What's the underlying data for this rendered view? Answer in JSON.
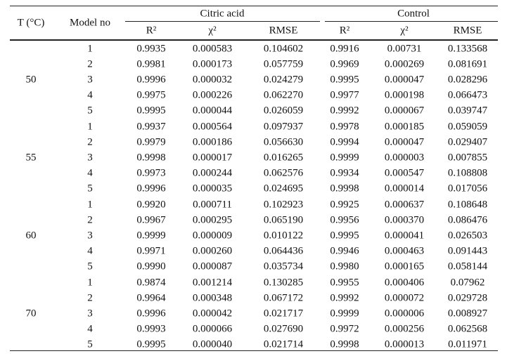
{
  "table": {
    "header": {
      "temperature": "T (°C)",
      "model": "Model no",
      "groups": [
        {
          "title": "Citric acid",
          "columns": [
            "R²",
            "χ²",
            "RMSE"
          ]
        },
        {
          "title": "Control",
          "columns": [
            "R²",
            "χ²",
            "RMSE"
          ]
        }
      ]
    },
    "blocks": [
      {
        "temperature": "50",
        "rows": [
          [
            "1",
            "0.9935",
            "0.000583",
            "0.104602",
            "0.9916",
            "0.00731",
            "0.133568"
          ],
          [
            "2",
            "0.9981",
            "0.000173",
            "0.057759",
            "0.9969",
            "0.000269",
            "0.081691"
          ],
          [
            "3",
            "0.9996",
            "0.000032",
            "0.024279",
            "0.9995",
            "0.000047",
            "0.028296"
          ],
          [
            "4",
            "0.9975",
            "0.000226",
            "0.062270",
            "0.9977",
            "0.000198",
            "0.066473"
          ],
          [
            "5",
            "0.9995",
            "0.000044",
            "0.026059",
            "0.9992",
            "0.000067",
            "0.039747"
          ]
        ]
      },
      {
        "temperature": "55",
        "rows": [
          [
            "1",
            "0.9937",
            "0.000564",
            "0.097937",
            "0.9978",
            "0.000185",
            "0.059059"
          ],
          [
            "2",
            "0.9979",
            "0.000186",
            "0.056630",
            "0.9994",
            "0.000047",
            "0.029407"
          ],
          [
            "3",
            "0.9998",
            "0.000017",
            "0.016265",
            "0.9999",
            "0.000003",
            "0.007855"
          ],
          [
            "4",
            "0.9973",
            "0.000244",
            "0.062576",
            "0.9934",
            "0.000547",
            "0.108808"
          ],
          [
            "5",
            "0.9996",
            "0.000035",
            "0.024695",
            "0.9998",
            "0.000014",
            "0.017056"
          ]
        ]
      },
      {
        "temperature": "60",
        "rows": [
          [
            "1",
            "0.9920",
            "0.000711",
            "0.102923",
            "0.9925",
            "0.000637",
            "0.108648"
          ],
          [
            "2",
            "0.9967",
            "0.000295",
            "0.065190",
            "0.9956",
            "0.000370",
            "0.086476"
          ],
          [
            "3",
            "0.9999",
            "0.000009",
            "0.010122",
            "0.9995",
            "0.000041",
            "0.026503"
          ],
          [
            "4",
            "0.9971",
            "0.000260",
            "0.064436",
            "0.9946",
            "0.000463",
            "0.091443"
          ],
          [
            "5",
            "0.9990",
            "0.000087",
            "0.035734",
            "0.9980",
            "0.000165",
            "0.058144"
          ]
        ]
      },
      {
        "temperature": "70",
        "rows": [
          [
            "1",
            "0.9874",
            "0.001214",
            "0.130285",
            "0.9955",
            "0.000406",
            "0.07962"
          ],
          [
            "2",
            "0.9964",
            "0.000348",
            "0.067172",
            "0.9992",
            "0.000072",
            "0.029728"
          ],
          [
            "3",
            "0.9996",
            "0.000042",
            "0.021717",
            "0.9999",
            "0.000006",
            "0.008927"
          ],
          [
            "4",
            "0.9993",
            "0.000066",
            "0.027690",
            "0.9972",
            "0.000256",
            "0.062568"
          ],
          [
            "5",
            "0.9995",
            "0.000040",
            "0.021714",
            "0.9998",
            "0.000013",
            "0.011971"
          ]
        ]
      }
    ]
  }
}
